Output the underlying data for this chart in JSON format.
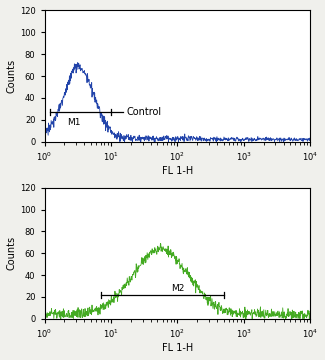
{
  "top_color": "#2244aa",
  "bottom_color": "#44aa22",
  "ylim": [
    0,
    120
  ],
  "yticks": [
    0,
    20,
    40,
    60,
    80,
    100,
    120
  ],
  "xlim_log": [
    1,
    10000
  ],
  "xlabel": "FL 1-H",
  "ylabel": "Counts",
  "top_label": "M1",
  "top_annotation": "Control",
  "bottom_label": "M2",
  "top_peak_center_log": 0.52,
  "top_peak_height": 65,
  "top_peak_width": 0.22,
  "top_noise_base": 3,
  "bottom_peak_center_log": 1.75,
  "bottom_peak_height": 60,
  "bottom_peak_width": 0.42,
  "bottom_noise_base": 4,
  "background_color": "#f0f0ec",
  "plot_bg": "#ffffff",
  "m1_x1": 1.2,
  "m1_x2": 10,
  "m1_y": 27,
  "m2_x1": 7,
  "m2_x2": 500,
  "m2_y": 22
}
